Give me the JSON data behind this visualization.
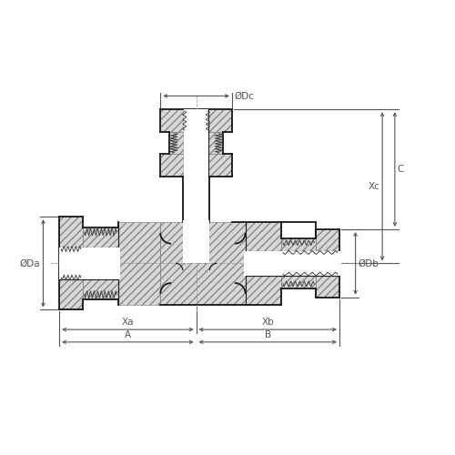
{
  "bg_color": "#ffffff",
  "line_color": "#1a1a1a",
  "dim_color": "#555555",
  "fig_size": [
    5.0,
    5.0
  ],
  "dpi": 100,
  "labels": {
    "Da": "ØDa",
    "Db": "ØDb",
    "Dc": "ØDc",
    "Xa": "Xa",
    "Xb": "Xb",
    "Xc": "Xc",
    "A": "A",
    "B": "B",
    "C": "C"
  }
}
